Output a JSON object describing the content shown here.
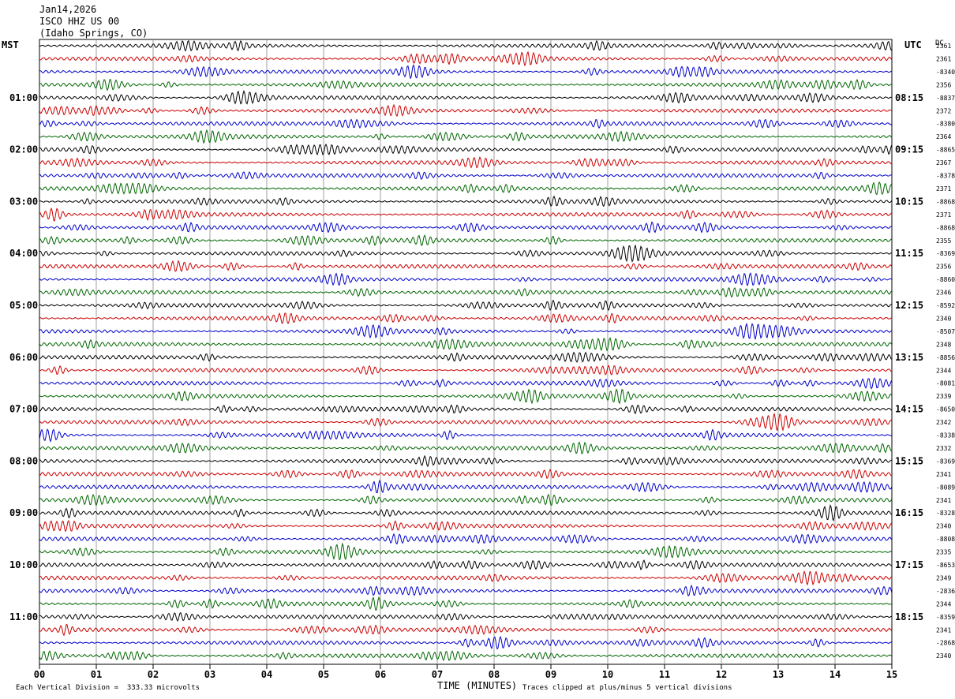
{
  "header": {
    "date": "Jan14,2026",
    "station": "ISCO HHZ US 00",
    "location": "(Idaho Springs, CO)"
  },
  "left_tz": "MST",
  "right_tz": "UTC",
  "dc_label": "DC",
  "footer": {
    "scale_note": "Each Vertical Division =  333.33 microvolts",
    "x_axis_label": "TIME (MINUTES)",
    "clip_note": "Traces clipped at plus/minus 5 vertical divisions"
  },
  "colors": {
    "cycle": [
      "#000000",
      "#cc0000",
      "#0000cc",
      "#006600"
    ],
    "grid": "#888888"
  },
  "chart_data": {
    "type": "line",
    "title": "Jan14,2026 ISCO HHZ US 00 (Idaho Springs, CO)",
    "xlabel": "TIME (MINUTES)",
    "xlim": [
      0,
      15
    ],
    "x_ticks": [
      "00",
      "01",
      "02",
      "03",
      "04",
      "05",
      "06",
      "07",
      "08",
      "09",
      "10",
      "11",
      "12",
      "13",
      "14",
      "15"
    ],
    "rows_per_hour": 4,
    "minutes_per_row": 15,
    "row_count": 48,
    "left_hour_labels": [
      "01:00",
      "02:00",
      "03:00",
      "04:00",
      "05:00",
      "06:00",
      "07:00",
      "08:00",
      "09:00",
      "10:00",
      "11:00"
    ],
    "right_hour_labels": [
      "08:15",
      "09:15",
      "10:15",
      "11:15",
      "12:15",
      "13:15",
      "14:15",
      "15:15",
      "16:15",
      "17:15",
      "18:15"
    ],
    "dc_values": [
      "2361",
      "2361",
      "-8340",
      "2356",
      "-8837",
      "2372",
      "-8380",
      "2364",
      "-8865",
      "2367",
      "-8378",
      "2371",
      "-8868",
      "2371",
      "-8868",
      "2355",
      "-8369",
      "2356",
      "-8860",
      "2346",
      "-8592",
      "2340",
      "-8507",
      "2348",
      "-8856",
      "2344",
      "-8081",
      "2339",
      "-8650",
      "2342",
      "-8338",
      "2332",
      "-8369",
      "2341",
      "-8089",
      "2341",
      "-8328",
      "2340",
      "-8808",
      "2335",
      "-8653",
      "2349",
      "-2836",
      "2344",
      "-8359",
      "2341",
      "-2868",
      "2340"
    ],
    "grid": true
  }
}
